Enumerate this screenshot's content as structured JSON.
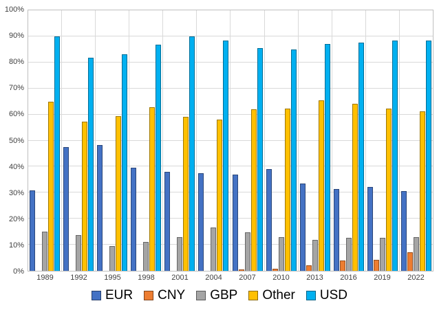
{
  "chart_data": {
    "type": "bar",
    "title": "",
    "xlabel": "",
    "ylabel": "",
    "grid": true,
    "legend_position": "bottom",
    "categories": [
      "1989",
      "1992",
      "1995",
      "1998",
      "2001",
      "2004",
      "2007",
      "2010",
      "2013",
      "2016",
      "2019",
      "2022"
    ],
    "series": [
      {
        "name": "EUR",
        "color": "#4472C4",
        "values": [
          31.0,
          47.5,
          48.2,
          39.5,
          37.9,
          37.4,
          37.0,
          39.0,
          33.4,
          31.4,
          32.3,
          30.5
        ]
      },
      {
        "name": "CNY",
        "color": "#ED7D31",
        "values": [
          0,
          0,
          0,
          0,
          0,
          0,
          0.5,
          0.9,
          2.2,
          4.0,
          4.3,
          7.0
        ]
      },
      {
        "name": "GBP",
        "color": "#A5A5A5",
        "values": [
          15.0,
          13.6,
          9.4,
          11.0,
          13.0,
          16.5,
          14.9,
          12.9,
          11.8,
          12.8,
          12.8,
          12.9
        ]
      },
      {
        "name": "Other",
        "color": "#FFC000",
        "values": [
          64.9,
          57.2,
          59.4,
          62.8,
          59.2,
          58.1,
          62.0,
          62.3,
          65.5,
          64.2,
          62.3,
          61.1
        ]
      },
      {
        "name": "USD",
        "color": "#00B0F0",
        "values": [
          90.0,
          81.8,
          83.0,
          86.8,
          90.0,
          88.3,
          85.6,
          84.9,
          87.0,
          87.6,
          88.3,
          88.4
        ]
      }
    ],
    "y_axis": {
      "min": 0,
      "max": 100,
      "step": 10,
      "tick_suffix": "%",
      "tick_labels": [
        "0%",
        "10%",
        "20%",
        "30%",
        "40%",
        "50%",
        "60%",
        "70%",
        "80%",
        "90%",
        "100%"
      ]
    },
    "legend": [
      "EUR",
      "CNY",
      "GBP",
      "Other",
      "USD"
    ]
  }
}
